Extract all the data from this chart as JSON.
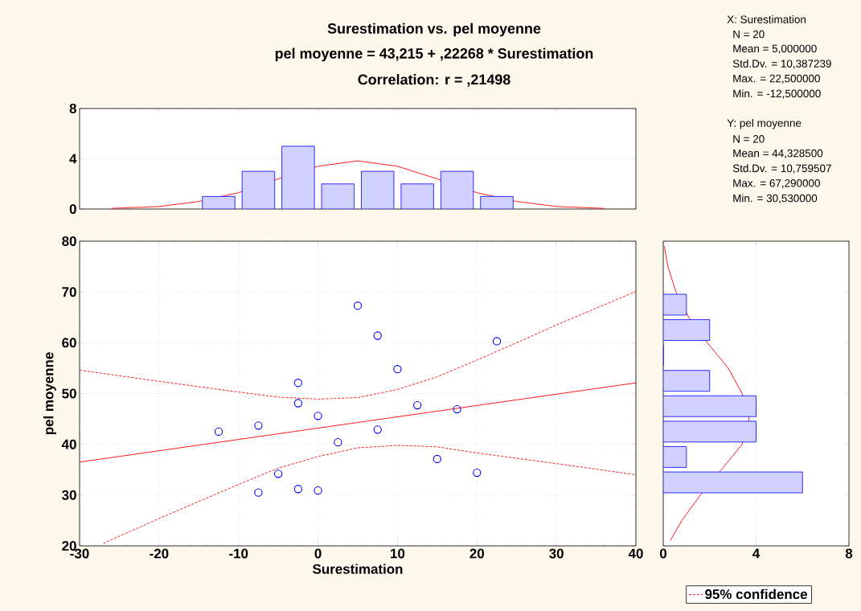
{
  "chart_data": [
    {
      "type": "histogram",
      "title": "Surestimation vs. pel moyenne",
      "subtitle": "pel moyenne = 43,215 + ,22268 * Surestimation",
      "annotations": [
        "Correlation: r = ,21498"
      ],
      "xlim": [
        -30,
        40
      ],
      "ylim": [
        0,
        8
      ],
      "xticks": [
        -30,
        -20,
        -10,
        0,
        10,
        20,
        30,
        40
      ],
      "yticks": [
        0,
        4,
        8
      ],
      "tick_labels": "y",
      "grid": "y",
      "color": "#0000ff",
      "bins": [
        -15,
        -10,
        -5,
        0,
        5,
        10,
        15,
        20,
        25
      ],
      "values": [
        1,
        3,
        5,
        2,
        3,
        2,
        3,
        1
      ],
      "series": [
        {
          "type": "line",
          "color": "#ff0000",
          "x": [
            -26,
            -20,
            -15,
            -10,
            -5,
            0,
            5,
            10,
            15,
            20,
            25,
            30,
            36
          ],
          "values": [
            0.05,
            0.2,
            0.6,
            1.3,
            2.4,
            3.4,
            3.84,
            3.4,
            2.4,
            1.3,
            0.6,
            0.2,
            0.05
          ]
        }
      ]
    },
    {
      "type": "other",
      "annotations": [
        "X:  Surestimation",
        "N = 20",
        "Mean = 5,000000",
        "Std.Dv. = 10,387239",
        "Max. = 22,500000",
        "Min. = -12,500000",
        "Y:  pel moyenne",
        "N = 20",
        "Mean = 44,328500",
        "Std.Dv. = 10,759507",
        "Max. = 67,290000",
        "Min. = 30,530000"
      ]
    },
    {
      "type": "scatter",
      "xlabel": "Surestimation",
      "ylabel": "pel moyenne",
      "xlim": [
        -30,
        40
      ],
      "ylim": [
        20,
        80
      ],
      "xticks": [
        -30,
        -20,
        -10,
        0,
        10,
        20,
        30,
        40
      ],
      "yticks": [
        20,
        30,
        40,
        50,
        60,
        70,
        80
      ],
      "grid": true,
      "legend": "bottom right",
      "series": [
        {
          "type": "scatter",
          "color": "#0000ff",
          "marker": "circle",
          "x": [
            -12.5,
            -7.5,
            -7.5,
            -5,
            -2.5,
            -2.5,
            -2.5,
            0,
            0,
            2.5,
            5,
            7.5,
            7.5,
            10,
            12.5,
            15,
            17.5,
            20,
            22.5
          ],
          "values": [
            42.5,
            43.7,
            30.5,
            34.2,
            52.1,
            48.1,
            31.2,
            45.6,
            30.9,
            40.4,
            67.3,
            61.4,
            42.9,
            54.8,
            47.7,
            37.1,
            46.9,
            34.4,
            60.3
          ]
        },
        {
          "type": "line",
          "color": "#ff0000",
          "line_style": "solid",
          "x": [
            -30,
            40
          ],
          "values": [
            36.5,
            52.1
          ]
        },
        {
          "type": "line",
          "name": "95% confidence",
          "color": "#ff0000",
          "line_style": "dashed",
          "x": [
            -30,
            -20,
            -10,
            -5,
            0,
            5,
            10,
            15,
            20,
            25,
            30,
            40
          ],
          "values": [
            54.6,
            52.4,
            50.3,
            49.3,
            48.9,
            49.2,
            50.8,
            53.3,
            56.6,
            60.0,
            63.5,
            70.1
          ]
        },
        {
          "type": "line",
          "color": "#ff0000",
          "line_style": "dashed",
          "x": [
            -27,
            -20,
            -10,
            -5,
            0,
            5,
            10,
            15,
            20,
            30,
            40
          ],
          "values": [
            20.5,
            25.4,
            32.1,
            35.3,
            37.6,
            39.3,
            39.8,
            39.5,
            38.3,
            36.2,
            34.0
          ]
        }
      ]
    },
    {
      "type": "histogram",
      "orientation": "horizontal",
      "xlim": [
        0,
        8
      ],
      "ylim": [
        20,
        80
      ],
      "xticks": [
        0,
        4,
        8
      ],
      "yticks": [
        20,
        30,
        40,
        50,
        60,
        70,
        80
      ],
      "tick_labels": "x",
      "grid": "x",
      "color": "#0000ff",
      "bins": [
        30,
        35,
        40,
        45,
        50,
        55,
        60,
        65,
        70
      ],
      "values": [
        6,
        1,
        4,
        4,
        2,
        0,
        2,
        1
      ],
      "series": [
        {
          "type": "line",
          "color": "#ff0000",
          "x": [
            21,
            25,
            30,
            35,
            40,
            45,
            50,
            55,
            60,
            65,
            70,
            75,
            79
          ],
          "values": [
            0.3,
            0.8,
            1.6,
            2.5,
            3.4,
            3.7,
            3.4,
            2.8,
            1.9,
            1.1,
            0.55,
            0.2,
            0.05
          ]
        }
      ]
    }
  ]
}
